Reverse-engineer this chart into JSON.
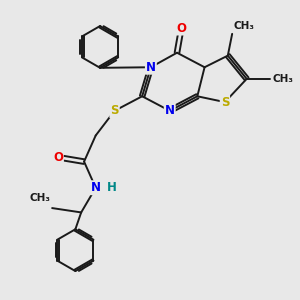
{
  "background_color": "#e8e8e8",
  "bond_color": "#1a1a1a",
  "bond_width": 1.4,
  "atom_colors": {
    "C": "#1a1a1a",
    "N": "#0000ee",
    "O": "#ee0000",
    "S": "#bbaa00",
    "H": "#008888"
  },
  "font_size": 8.5,
  "figsize": [
    3.0,
    3.0
  ],
  "dpi": 100,
  "xlim": [
    0,
    10
  ],
  "ylim": [
    0,
    10
  ]
}
